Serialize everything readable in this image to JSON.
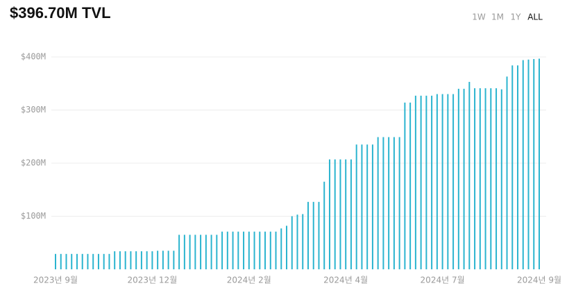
{
  "chart_data": {
    "type": "bar",
    "title": "$396.70M TVL",
    "range_options": [
      "1W",
      "1M",
      "1Y",
      "ALL"
    ],
    "selected_range": "ALL",
    "color": "#2ab4cf",
    "grid": true,
    "ylim": [
      0,
      400
    ],
    "yticks": [
      {
        "value": 100,
        "label": "$100M"
      },
      {
        "value": 200,
        "label": "$200M"
      },
      {
        "value": 300,
        "label": "$300M"
      },
      {
        "value": 400,
        "label": "$400M"
      }
    ],
    "categories": [
      "2023년 9월",
      null,
      null,
      null,
      null,
      null,
      null,
      null,
      null,
      null,
      null,
      null,
      null,
      null,
      null,
      null,
      null,
      null,
      "2023년 12월",
      null,
      null,
      null,
      null,
      null,
      null,
      null,
      null,
      null,
      null,
      null,
      null,
      null,
      null,
      null,
      null,
      null,
      "2024년 2월",
      null,
      null,
      null,
      null,
      null,
      null,
      null,
      null,
      null,
      null,
      null,
      null,
      null,
      null,
      null,
      null,
      null,
      "2024년 4월",
      null,
      null,
      null,
      null,
      null,
      null,
      null,
      null,
      null,
      null,
      null,
      null,
      null,
      null,
      null,
      null,
      null,
      "2024년 7월",
      null,
      null,
      null,
      null,
      null,
      null,
      null,
      null,
      null,
      null,
      null,
      null,
      null,
      null,
      null,
      null,
      null,
      "2024년 9월"
    ],
    "values": [
      29,
      29,
      29,
      29,
      29,
      29,
      29,
      29,
      29,
      29,
      29,
      34,
      34,
      34,
      34,
      34,
      34,
      34,
      34,
      35,
      35,
      35,
      35,
      65,
      65,
      65,
      65,
      65,
      65,
      65,
      65,
      71,
      71,
      71,
      71,
      71,
      71,
      71,
      71,
      71,
      71,
      71,
      77,
      82,
      100,
      103,
      104,
      127,
      127,
      127,
      165,
      207,
      207,
      207,
      207,
      207,
      235,
      235,
      235,
      235,
      249,
      249,
      249,
      249,
      249,
      314,
      314,
      327,
      327,
      327,
      327,
      330,
      330,
      330,
      330,
      340,
      340,
      353,
      341,
      341,
      341,
      341,
      341,
      339,
      363,
      384,
      384,
      394,
      395,
      396,
      396.7
    ]
  }
}
